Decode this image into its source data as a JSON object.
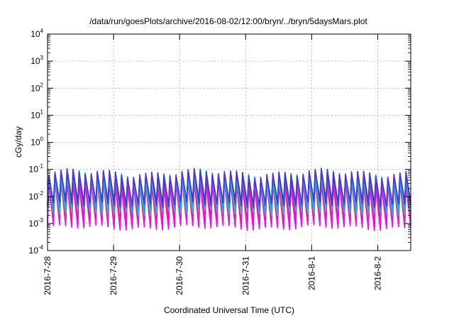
{
  "chart_data": {
    "type": "line",
    "title": "/data/run/goesPlots/archive/2016-08-02/12:00/bryn/../bryn/5daysMars.plot",
    "xlabel": "Coordinated Universal Time (UTC)",
    "ylabel": "cGy/day",
    "y_scale": "log",
    "ylim": [
      0.0001,
      10000
    ],
    "y_ticks": [
      {
        "base": "10",
        "exp": "-4",
        "value": 0.0001
      },
      {
        "base": "10",
        "exp": "-3",
        "value": 0.001
      },
      {
        "base": "10",
        "exp": "-2",
        "value": 0.01
      },
      {
        "base": "10",
        "exp": "-1",
        "value": 0.1
      },
      {
        "base": "10",
        "exp": "0",
        "value": 1
      },
      {
        "base": "10",
        "exp": "1",
        "value": 10
      },
      {
        "base": "10",
        "exp": "2",
        "value": 100
      },
      {
        "base": "10",
        "exp": "3",
        "value": 1000
      },
      {
        "base": "10",
        "exp": "4",
        "value": 10000
      }
    ],
    "xlim": [
      "2016-07-28T00:00",
      "2016-08-02T12:00"
    ],
    "x_ticks": [
      "2016-7-28",
      "2016-7-29",
      "2016-7-30",
      "2016-7-31",
      "2016-8-1",
      "2016-8-2"
    ],
    "grid": true,
    "legend": "none",
    "series": [
      {
        "color": "#ff00ff",
        "peak": 0.03,
        "trough": 0.0007
      },
      {
        "color": "#ff00ff",
        "peak": 0.035,
        "trough": 0.0009
      },
      {
        "color": "#dd22aa",
        "peak": 0.04,
        "trough": 0.0012
      },
      {
        "color": "#20c0b0",
        "peak": 0.05,
        "trough": 0.0025
      },
      {
        "color": "#00aaff",
        "peak": 0.06,
        "trough": 0.004
      },
      {
        "color": "#2244dd",
        "peak": 0.07,
        "trough": 0.006
      },
      {
        "color": "#5533cc",
        "peak": 0.065,
        "trough": 0.005
      }
    ],
    "cycle_count": 60,
    "pattern_note": "sawtooth: quick rise then slow decay each cycle"
  }
}
